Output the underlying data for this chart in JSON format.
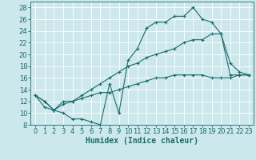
{
  "xlabel": "Humidex (Indice chaleur)",
  "xlim": [
    -0.5,
    23.5
  ],
  "ylim": [
    8,
    29
  ],
  "yticks": [
    8,
    10,
    12,
    14,
    16,
    18,
    20,
    22,
    24,
    26,
    28
  ],
  "xticks": [
    0,
    1,
    2,
    3,
    4,
    5,
    6,
    7,
    8,
    9,
    10,
    11,
    12,
    13,
    14,
    15,
    16,
    17,
    18,
    19,
    20,
    21,
    22,
    23
  ],
  "bg_color": "#cce8ec",
  "line_color": "#1a6b6b",
  "grid_color": "#ffffff",
  "line1_x": [
    0,
    1,
    2,
    3,
    4,
    5,
    6,
    7,
    8,
    9,
    10,
    11,
    12,
    13,
    14,
    15,
    16,
    17,
    18,
    19,
    20,
    21,
    22,
    23
  ],
  "line1_y": [
    13,
    11,
    10.5,
    10,
    9,
    9,
    8.5,
    8,
    15,
    10,
    19,
    21,
    24.5,
    25.5,
    25.5,
    26.5,
    26.5,
    28,
    26,
    25.5,
    23.5,
    18.5,
    17,
    16.5
  ],
  "line2_x": [
    0,
    1,
    2,
    3,
    4,
    5,
    6,
    7,
    8,
    9,
    10,
    11,
    12,
    13,
    14,
    15,
    16,
    17,
    18,
    19,
    20,
    21,
    22,
    23
  ],
  "line2_y": [
    13,
    12,
    10.5,
    12,
    12,
    13,
    14,
    15,
    16,
    17,
    18,
    18.5,
    19.5,
    20,
    20.5,
    21,
    22,
    22.5,
    22.5,
    23.5,
    23.5,
    16.5,
    16.5,
    16.5
  ],
  "line3_x": [
    0,
    1,
    2,
    3,
    4,
    5,
    6,
    7,
    8,
    9,
    10,
    11,
    12,
    13,
    14,
    15,
    16,
    17,
    18,
    19,
    20,
    21,
    22,
    23
  ],
  "line3_y": [
    13,
    12,
    10.5,
    11.5,
    12,
    12.5,
    13,
    13.5,
    13.5,
    14,
    14.5,
    15,
    15.5,
    16,
    16,
    16.5,
    16.5,
    16.5,
    16.5,
    16,
    16,
    16,
    16.5,
    16.5
  ],
  "tick_fontsize": 6,
  "label_fontsize": 7
}
